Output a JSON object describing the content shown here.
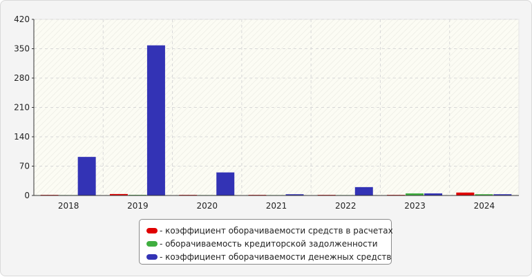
{
  "chart_data": {
    "type": "bar",
    "categories": [
      "2018",
      "2019",
      "2020",
      "2021",
      "2022",
      "2023",
      "2024"
    ],
    "series": [
      {
        "name": "- коэффициент оборачиваемости средств в расчетах",
        "color": "#e00000",
        "values": [
          1.5,
          3.5,
          1.5,
          1.5,
          1.5,
          1.5,
          7
        ]
      },
      {
        "name": "- оборачиваемость кредиторской задолженности",
        "color": "#3fae3f",
        "values": [
          1,
          1.5,
          1,
          1,
          1,
          5,
          3
        ]
      },
      {
        "name": "- коэффициент оборачиваемости денежных средств",
        "color": "#3333b5",
        "values": [
          92,
          358,
          55,
          3,
          20,
          5,
          3
        ]
      }
    ],
    "yticks": [
      "0",
      "70",
      "140",
      "210",
      "280",
      "350",
      "420"
    ],
    "ylim": [
      0,
      420
    ],
    "grid": true,
    "legend": "bottom-center"
  }
}
